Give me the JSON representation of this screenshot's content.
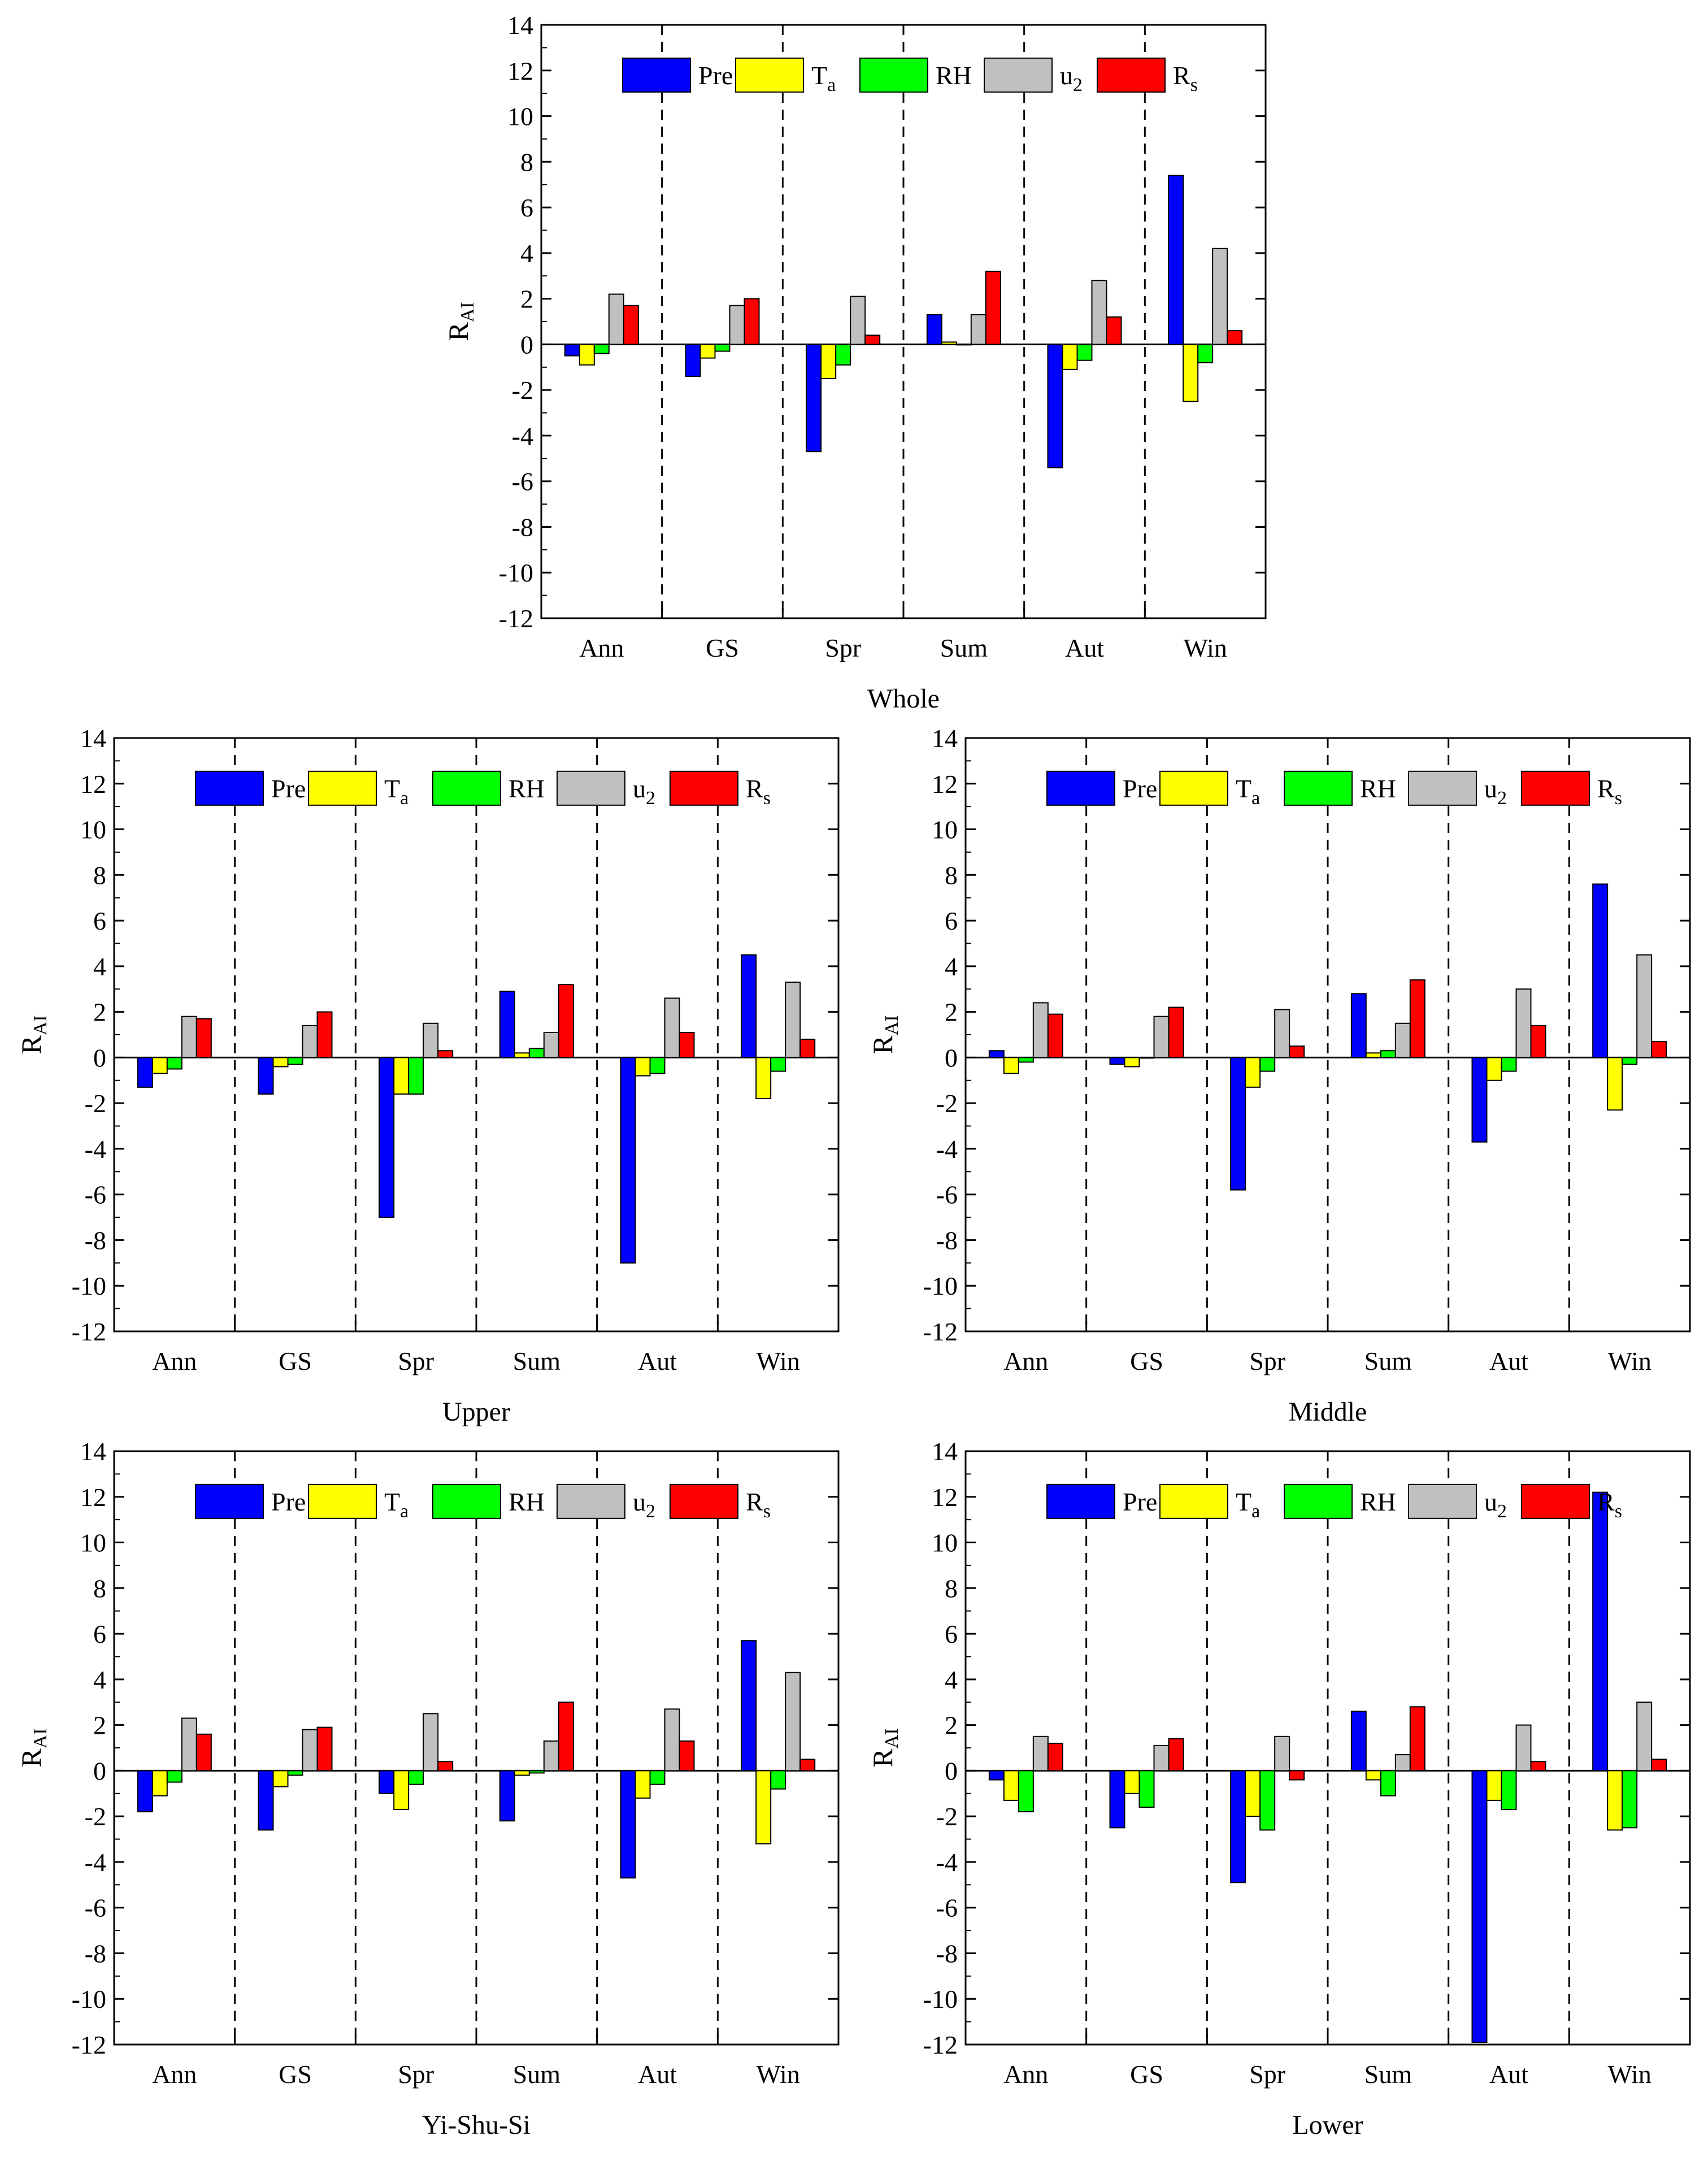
{
  "colors": {
    "Pre": "#0000ff",
    "Ta": "#ffff00",
    "RH": "#00ff00",
    "u2": "#c0c0c0",
    "Rs": "#ff0000",
    "outline": "#000000"
  },
  "chart_data": [
    {
      "id": "whole",
      "type": "bar",
      "title": "Whole",
      "ylabel": "R",
      "ylabel_sub": "AI",
      "ylim": [
        -12,
        14
      ],
      "yticks": [
        14,
        12,
        10,
        8,
        6,
        4,
        2,
        0,
        -2,
        -4,
        -6,
        -8,
        -10,
        -12
      ],
      "categories": [
        "Ann",
        "GS",
        "Spr",
        "Sum",
        "Aut",
        "Win"
      ],
      "legend": [
        {
          "key": "Pre",
          "label": "Pre",
          "sub": ""
        },
        {
          "key": "Ta",
          "label": "T",
          "sub": "a"
        },
        {
          "key": "RH",
          "label": "RH",
          "sub": ""
        },
        {
          "key": "u2",
          "label": "u",
          "sub": "2"
        },
        {
          "key": "Rs",
          "label": "R",
          "sub": "s"
        }
      ],
      "series": [
        {
          "name": "Pre",
          "values": [
            -0.5,
            -1.4,
            -4.7,
            1.3,
            -5.4,
            7.4
          ]
        },
        {
          "name": "Ta",
          "values": [
            -0.9,
            -0.6,
            -1.5,
            0.1,
            -1.1,
            -2.5
          ]
        },
        {
          "name": "RH",
          "values": [
            -0.4,
            -0.3,
            -0.9,
            0.0,
            -0.7,
            -0.8
          ]
        },
        {
          "name": "u2",
          "values": [
            2.2,
            1.7,
            2.1,
            1.3,
            2.8,
            4.2
          ]
        },
        {
          "name": "Rs",
          "values": [
            1.7,
            2.0,
            0.4,
            3.2,
            1.2,
            0.6
          ]
        }
      ]
    },
    {
      "id": "upper",
      "type": "bar",
      "title": "Upper",
      "ylabel": "R",
      "ylabel_sub": "AI",
      "ylim": [
        -12,
        14
      ],
      "yticks": [
        14,
        12,
        10,
        8,
        6,
        4,
        2,
        0,
        -2,
        -4,
        -6,
        -8,
        -10,
        -12
      ],
      "categories": [
        "Ann",
        "GS",
        "Spr",
        "Sum",
        "Aut",
        "Win"
      ],
      "legend": [
        {
          "key": "Pre",
          "label": "Pre",
          "sub": ""
        },
        {
          "key": "Ta",
          "label": "T",
          "sub": "a"
        },
        {
          "key": "RH",
          "label": "RH",
          "sub": ""
        },
        {
          "key": "u2",
          "label": "u",
          "sub": "2"
        },
        {
          "key": "Rs",
          "label": "R",
          "sub": "s"
        }
      ],
      "series": [
        {
          "name": "Pre",
          "values": [
            -1.3,
            -1.6,
            -7.0,
            2.9,
            -9.0,
            4.5
          ]
        },
        {
          "name": "Ta",
          "values": [
            -0.7,
            -0.4,
            -1.6,
            0.2,
            -0.8,
            -1.8
          ]
        },
        {
          "name": "RH",
          "values": [
            -0.5,
            -0.3,
            -1.6,
            0.4,
            -0.7,
            -0.6
          ]
        },
        {
          "name": "u2",
          "values": [
            1.8,
            1.4,
            1.5,
            1.1,
            2.6,
            3.3
          ]
        },
        {
          "name": "Rs",
          "values": [
            1.7,
            2.0,
            0.3,
            3.2,
            1.1,
            0.8
          ]
        }
      ]
    },
    {
      "id": "middle",
      "type": "bar",
      "title": "Middle",
      "ylabel": "R",
      "ylabel_sub": "AI",
      "ylim": [
        -12,
        14
      ],
      "yticks": [
        14,
        12,
        10,
        8,
        6,
        4,
        2,
        0,
        -2,
        -4,
        -6,
        -8,
        -10,
        -12
      ],
      "categories": [
        "Ann",
        "GS",
        "Spr",
        "Sum",
        "Aut",
        "Win"
      ],
      "legend": [
        {
          "key": "Pre",
          "label": "Pre",
          "sub": ""
        },
        {
          "key": "Ta",
          "label": "T",
          "sub": "a"
        },
        {
          "key": "RH",
          "label": "RH",
          "sub": ""
        },
        {
          "key": "u2",
          "label": "u",
          "sub": "2"
        },
        {
          "key": "Rs",
          "label": "R",
          "sub": "s"
        }
      ],
      "series": [
        {
          "name": "Pre",
          "values": [
            0.3,
            -0.3,
            -5.8,
            2.8,
            -3.7,
            7.6
          ]
        },
        {
          "name": "Ta",
          "values": [
            -0.7,
            -0.4,
            -1.3,
            0.2,
            -1.0,
            -2.3
          ]
        },
        {
          "name": "RH",
          "values": [
            -0.2,
            0.0,
            -0.6,
            0.3,
            -0.6,
            -0.3
          ]
        },
        {
          "name": "u2",
          "values": [
            2.4,
            1.8,
            2.1,
            1.5,
            3.0,
            4.5
          ]
        },
        {
          "name": "Rs",
          "values": [
            1.9,
            2.2,
            0.5,
            3.4,
            1.4,
            0.7
          ]
        }
      ]
    },
    {
      "id": "yishusi",
      "type": "bar",
      "title": "Yi-Shu-Si",
      "ylabel": "R",
      "ylabel_sub": "AI",
      "ylim": [
        -12,
        14
      ],
      "yticks": [
        14,
        12,
        10,
        8,
        6,
        4,
        2,
        0,
        -2,
        -4,
        -6,
        -8,
        -10,
        -12
      ],
      "categories": [
        "Ann",
        "GS",
        "Spr",
        "Sum",
        "Aut",
        "Win"
      ],
      "legend": [
        {
          "key": "Pre",
          "label": "Pre",
          "sub": ""
        },
        {
          "key": "Ta",
          "label": "T",
          "sub": "a"
        },
        {
          "key": "RH",
          "label": "RH",
          "sub": ""
        },
        {
          "key": "u2",
          "label": "u",
          "sub": "2"
        },
        {
          "key": "Rs",
          "label": "R",
          "sub": "s"
        }
      ],
      "series": [
        {
          "name": "Pre",
          "values": [
            -1.8,
            -2.6,
            -1.0,
            -2.2,
            -4.7,
            5.7
          ]
        },
        {
          "name": "Ta",
          "values": [
            -1.1,
            -0.7,
            -1.7,
            -0.2,
            -1.2,
            -3.2
          ]
        },
        {
          "name": "RH",
          "values": [
            -0.5,
            -0.2,
            -0.6,
            -0.1,
            -0.6,
            -0.8
          ]
        },
        {
          "name": "u2",
          "values": [
            2.3,
            1.8,
            2.5,
            1.3,
            2.7,
            4.3
          ]
        },
        {
          "name": "Rs",
          "values": [
            1.6,
            1.9,
            0.4,
            3.0,
            1.3,
            0.5
          ]
        }
      ]
    },
    {
      "id": "lower",
      "type": "bar",
      "title": "Lower",
      "ylabel": "R",
      "ylabel_sub": "AI",
      "ylim": [
        -12,
        14
      ],
      "yticks": [
        14,
        12,
        10,
        8,
        6,
        4,
        2,
        0,
        -2,
        -4,
        -6,
        -8,
        -10,
        -12
      ],
      "categories": [
        "Ann",
        "GS",
        "Spr",
        "Sum",
        "Aut",
        "Win"
      ],
      "legend": [
        {
          "key": "Pre",
          "label": "Pre",
          "sub": ""
        },
        {
          "key": "Ta",
          "label": "T",
          "sub": "a"
        },
        {
          "key": "RH",
          "label": "RH",
          "sub": ""
        },
        {
          "key": "u2",
          "label": "u",
          "sub": "2"
        },
        {
          "key": "Rs",
          "label": "R",
          "sub": "s"
        }
      ],
      "series": [
        {
          "name": "Pre",
          "values": [
            -0.4,
            -2.5,
            -4.9,
            2.6,
            -11.9,
            12.2
          ]
        },
        {
          "name": "Ta",
          "values": [
            -1.3,
            -1.0,
            -2.0,
            -0.4,
            -1.3,
            -2.6
          ]
        },
        {
          "name": "RH",
          "values": [
            -1.8,
            -1.6,
            -2.6,
            -1.1,
            -1.7,
            -2.5
          ]
        },
        {
          "name": "u2",
          "values": [
            1.5,
            1.1,
            1.5,
            0.7,
            2.0,
            3.0
          ]
        },
        {
          "name": "Rs",
          "values": [
            1.2,
            1.4,
            -0.4,
            2.8,
            0.4,
            0.5
          ]
        }
      ]
    }
  ]
}
